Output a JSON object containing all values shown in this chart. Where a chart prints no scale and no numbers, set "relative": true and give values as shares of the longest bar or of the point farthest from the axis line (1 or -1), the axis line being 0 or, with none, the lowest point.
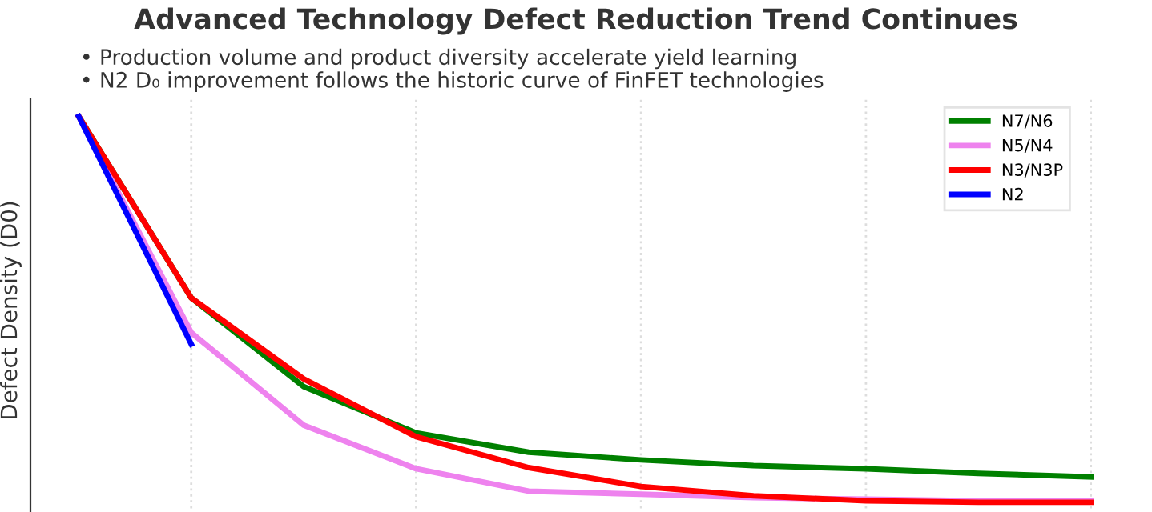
{
  "chart_data": {
    "type": "line",
    "title": "Advanced Technology Defect Reduction Trend Continues",
    "subtitle": "• Production volume and product diversity accelerate yield learning\n• N2 D₀ improvement follows the historic curve of FinFET technologies",
    "ylabel": "Defect Density (D0)",
    "relative": true,
    "grid": "x",
    "legend": "top right",
    "marker": "none",
    "line_style": "solid",
    "categories": [
      null,
      null,
      null,
      null,
      null,
      null,
      null,
      null,
      null,
      null
    ],
    "series": [
      {
        "name": "N7/N6",
        "color": "#008000",
        "values": [
          1,
          0.53,
          0.3,
          0.18,
          0.13,
          0.11,
          0.095,
          0.087,
          0.075,
          0.066
        ]
      },
      {
        "name": "N5/N4",
        "color": "#ee82ee",
        "values": [
          1,
          0.44,
          0.2,
          0.087,
          0.029,
          0.021,
          0.012,
          0.008,
          0.004,
          0.004
        ]
      },
      {
        "name": "N3/N3P",
        "color": "#ff0000",
        "values": [
          1,
          0.53,
          0.32,
          0.17,
          0.09,
          0.041,
          0.017,
          0.004,
          0,
          0
        ]
      },
      {
        "name": "N2",
        "color": "#0000ff",
        "values": [
          1,
          0.41,
          null,
          null,
          null,
          null,
          null,
          null,
          null,
          null
        ]
      }
    ]
  }
}
